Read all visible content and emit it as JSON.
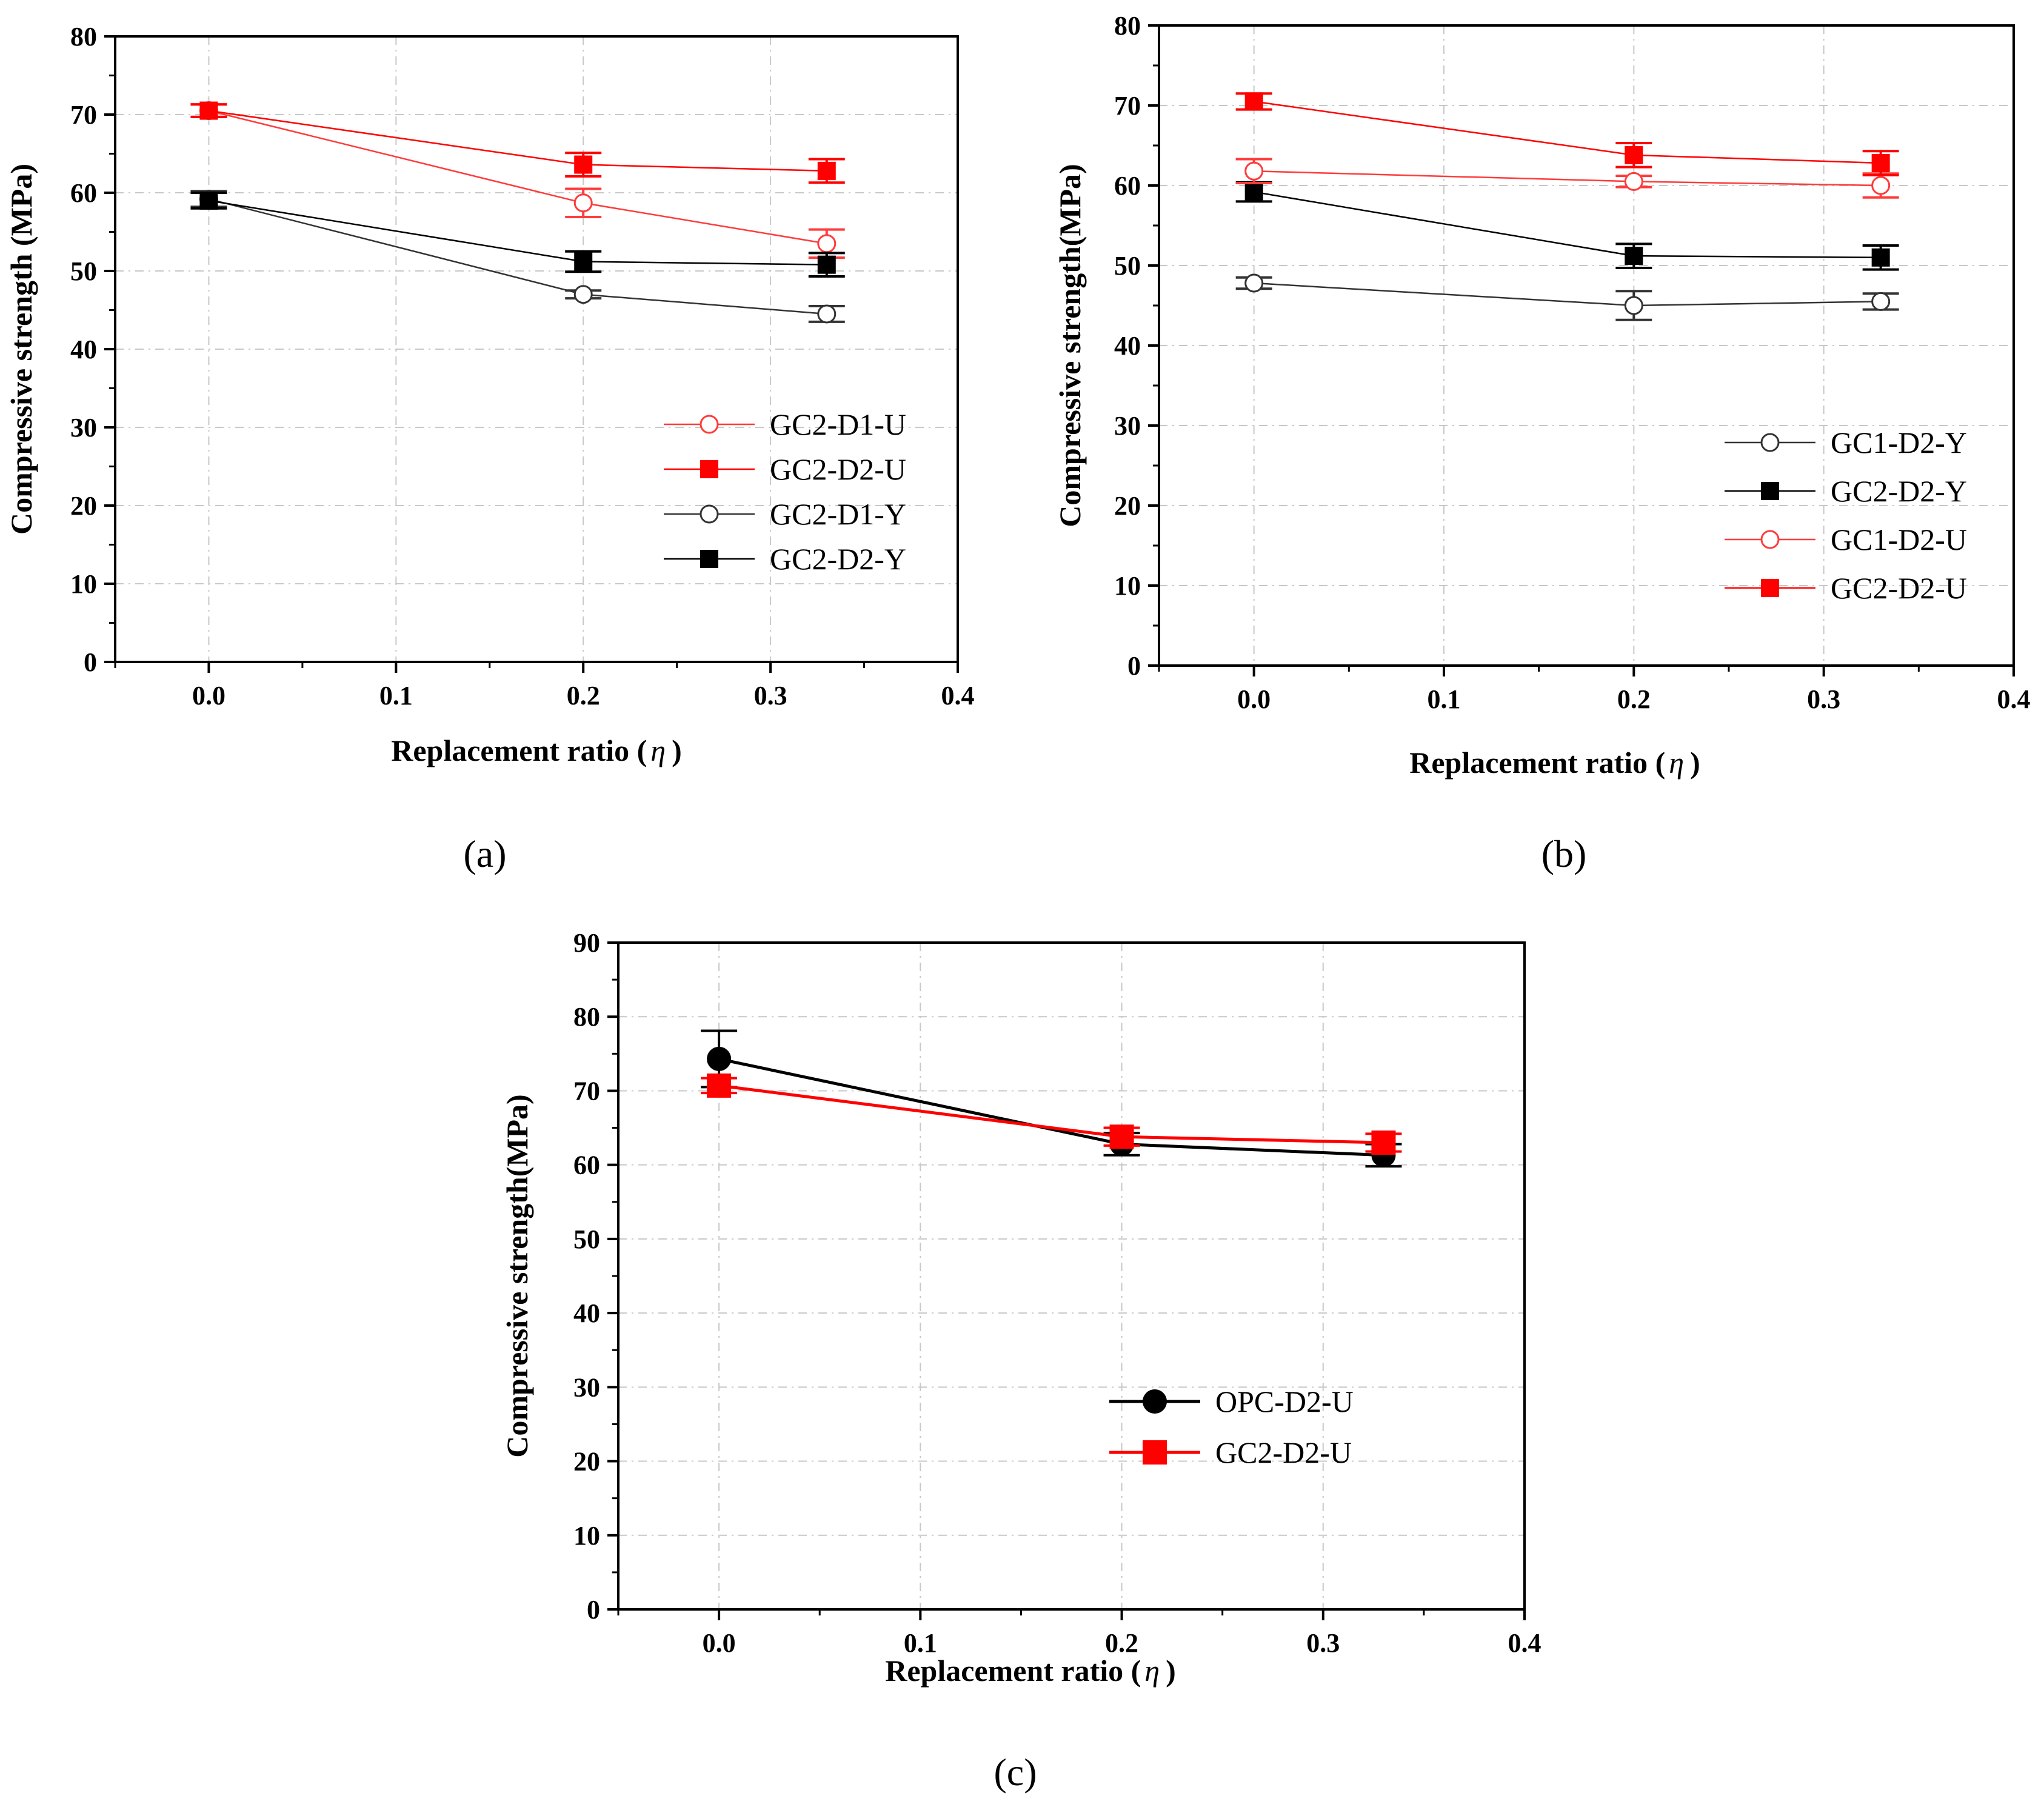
{
  "chart_data": [
    {
      "id": "a",
      "type": "line",
      "panel_label": "(a)",
      "xlabel": "Replacement  ratio (",
      "xlabel_symbol": "η",
      "xlabel_end": ")",
      "ylabel": "Compressive  strength (MPa)",
      "xlim": [
        -0.05,
        0.4
      ],
      "ylim": [
        0,
        80
      ],
      "xticks": [
        0.0,
        0.1,
        0.2,
        0.3,
        0.4
      ],
      "xtick_labels": [
        "0.0",
        "0.1",
        "0.2",
        "0.3",
        "0.4"
      ],
      "yticks": [
        0,
        10,
        20,
        30,
        40,
        50,
        60,
        70,
        80
      ],
      "ytick_labels": [
        "0",
        "10",
        "20",
        "30",
        "40",
        "50",
        "60",
        "70",
        "80"
      ],
      "grid": true,
      "legend_position": "center-right",
      "series": [
        {
          "name": "GC2-D1-U",
          "color": "#ff3b3b",
          "marker": "circle-open",
          "x": [
            0,
            0.2,
            0.33
          ],
          "y": [
            70.5,
            58.7,
            53.5
          ],
          "err": [
            0.8,
            1.8,
            1.8
          ]
        },
        {
          "name": "GC2-D2-U",
          "color": "#ff0000",
          "marker": "square-filled",
          "x": [
            0,
            0.2,
            0.33
          ],
          "y": [
            70.5,
            63.6,
            62.8
          ],
          "err": [
            0.8,
            1.5,
            1.5
          ]
        },
        {
          "name": "GC2-D1-Y",
          "color": "#333333",
          "marker": "circle-open",
          "x": [
            0,
            0.2,
            0.33
          ],
          "y": [
            59.2,
            47.0,
            44.5
          ],
          "err": [
            1.0,
            0.5,
            1.0
          ]
        },
        {
          "name": "GC2-D2-Y",
          "color": "#000000",
          "marker": "square-filled",
          "x": [
            0,
            0.2,
            0.33
          ],
          "y": [
            59.0,
            51.2,
            50.8
          ],
          "err": [
            1.0,
            1.3,
            1.5
          ]
        }
      ]
    },
    {
      "id": "b",
      "type": "line",
      "panel_label": "(b)",
      "xlabel": "Replacement  ratio (",
      "xlabel_symbol": "η",
      "xlabel_end": ")",
      "ylabel": "Compressive  strength(MPa)",
      "xlim": [
        -0.05,
        0.4
      ],
      "ylim": [
        0,
        80
      ],
      "xticks": [
        0.0,
        0.1,
        0.2,
        0.3,
        0.4
      ],
      "xtick_labels": [
        "0.0",
        "0.1",
        "0.2",
        "0.3",
        "0.4"
      ],
      "yticks": [
        0,
        10,
        20,
        30,
        40,
        50,
        60,
        70,
        80
      ],
      "ytick_labels": [
        "0",
        "10",
        "20",
        "30",
        "40",
        "50",
        "60",
        "70",
        "80"
      ],
      "grid": true,
      "legend_position": "lower-right",
      "series": [
        {
          "name": "GC1-D2-Y",
          "color": "#333333",
          "marker": "circle-open",
          "x": [
            0,
            0.2,
            0.33
          ],
          "y": [
            47.8,
            45.0,
            45.5
          ],
          "err": [
            0.7,
            1.8,
            1.0
          ]
        },
        {
          "name": "GC2-D2-Y",
          "color": "#000000",
          "marker": "square-filled",
          "x": [
            0,
            0.2,
            0.33
          ],
          "y": [
            59.2,
            51.2,
            51.0
          ],
          "err": [
            1.2,
            1.5,
            1.5
          ]
        },
        {
          "name": "GC1-D2-U",
          "color": "#ff3b3b",
          "marker": "circle-open",
          "x": [
            0,
            0.2,
            0.33
          ],
          "y": [
            61.8,
            60.5,
            60.0
          ],
          "err": [
            1.5,
            0.7,
            1.5
          ]
        },
        {
          "name": "GC2-D2-U",
          "color": "#ff0000",
          "marker": "square-filled",
          "x": [
            0,
            0.2,
            0.33
          ],
          "y": [
            70.5,
            63.8,
            62.8
          ],
          "err": [
            1.0,
            1.5,
            1.5
          ]
        }
      ]
    },
    {
      "id": "c",
      "type": "line",
      "panel_label": "(c)",
      "xlabel": "Replacement ratio (",
      "xlabel_symbol": "η",
      "xlabel_end": ")",
      "ylabel": "Compressive strength(MPa)",
      "xlim": [
        -0.05,
        0.4
      ],
      "ylim": [
        0,
        90
      ],
      "xticks": [
        0.0,
        0.1,
        0.2,
        0.3,
        0.4
      ],
      "xtick_labels": [
        "0.0",
        "0.1",
        "0.2",
        "0.3",
        "0.4"
      ],
      "yticks": [
        0,
        10,
        20,
        30,
        40,
        50,
        60,
        70,
        80,
        90
      ],
      "ytick_labels": [
        "0",
        "10",
        "20",
        "30",
        "40",
        "50",
        "60",
        "70",
        "80",
        "90"
      ],
      "grid": true,
      "legend_position": "lower-right",
      "series": [
        {
          "name": "OPC-D2-U",
          "color": "#000000",
          "marker": "circle-filled",
          "x": [
            0,
            0.2,
            0.33
          ],
          "y": [
            74.3,
            62.8,
            61.3
          ],
          "err": [
            3.8,
            1.5,
            1.5
          ]
        },
        {
          "name": "GC2-D2-U",
          "color": "#ff0000",
          "marker": "square-filled",
          "x": [
            0,
            0.2,
            0.33
          ],
          "y": [
            70.7,
            63.8,
            63.0
          ],
          "err": [
            1.0,
            1.2,
            1.2
          ]
        }
      ]
    }
  ]
}
